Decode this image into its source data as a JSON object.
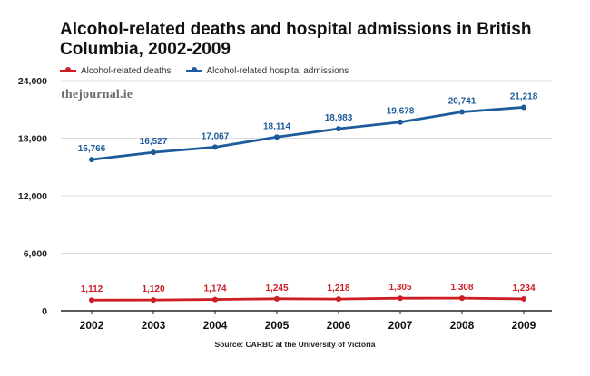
{
  "title": "Alcohol-related deaths and hospital admissions in British Columbia, 2002-2009",
  "watermark": "thejournal.ie",
  "source": "Source: CARBC at the University of Victoria",
  "colors": {
    "deaths": "#cc1e24",
    "admissions": "#1e5b9c",
    "grid": "#dcdcdc",
    "axis": "#222222"
  },
  "chart_data": {
    "type": "line",
    "title": "Alcohol-related deaths and hospital admissions in British Columbia, 2002-2009",
    "xlabel": "",
    "ylabel": "",
    "x": [
      "2002",
      "2003",
      "2004",
      "2005",
      "2006",
      "2007",
      "2008",
      "2009"
    ],
    "ylim": [
      0,
      24000
    ],
    "yticks": [
      0,
      6000,
      12000,
      18000,
      24000
    ],
    "ytick_labels": [
      "0",
      "6,000",
      "12,000",
      "18,000",
      "24,000"
    ],
    "grid": true,
    "legend": "top-left",
    "series": [
      {
        "name": "Alcohol-related deaths",
        "color": "#cc1e24",
        "values": [
          1112,
          1120,
          1174,
          1245,
          1218,
          1305,
          1308,
          1234
        ],
        "labels": [
          "1,112",
          "1,120",
          "1,174",
          "1,245",
          "1,218",
          "1,305",
          "1,308",
          "1,234"
        ]
      },
      {
        "name": "Alcohol-related hospital admissions",
        "color": "#1e5b9c",
        "values": [
          15766,
          16527,
          17067,
          18114,
          18983,
          19678,
          20741,
          21218
        ],
        "labels": [
          "15,766",
          "16,527",
          "17,067",
          "18,114",
          "18,983",
          "19,678",
          "20,741",
          "21,218"
        ]
      }
    ]
  }
}
